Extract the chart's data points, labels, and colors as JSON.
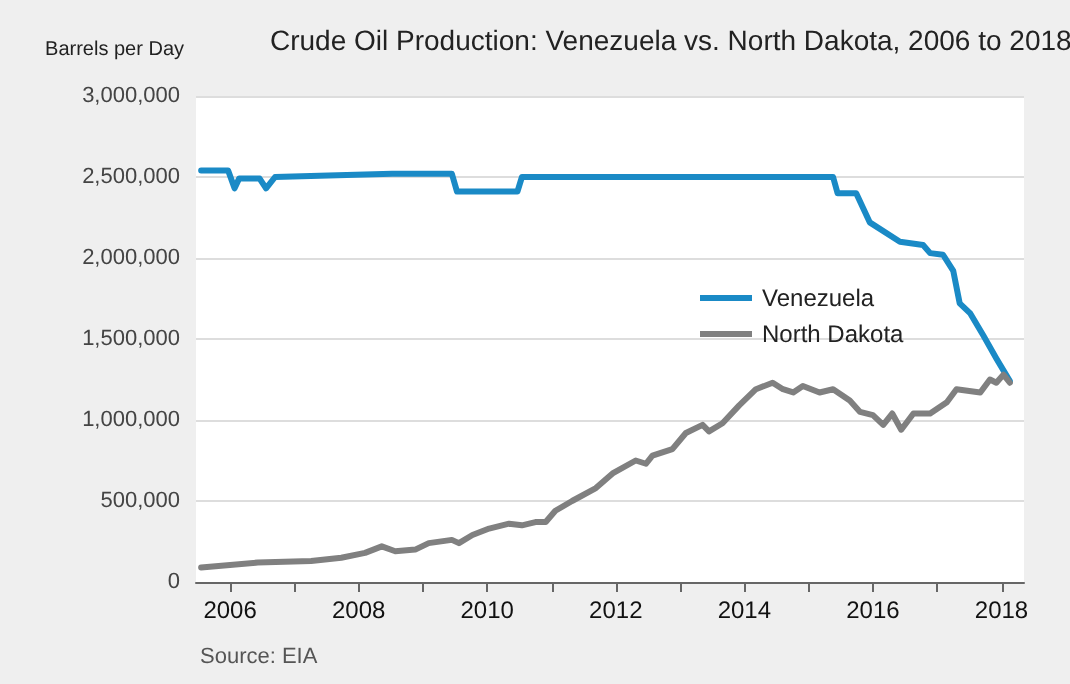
{
  "chart_data": {
    "type": "line",
    "title": "Crude Oil Production: Venezuela vs. North Dakota, 2006 to 2018",
    "ylabel": "Barrels per Day",
    "annotations": [
      "Source: EIA"
    ],
    "xlim": [
      2005.47,
      2018.35
    ],
    "xticks": [
      2006,
      {
        "value": 2007,
        "label": null
      },
      2008,
      {
        "value": 2009,
        "label": null
      },
      2010,
      {
        "value": 2011,
        "label": null
      },
      2012,
      {
        "value": 2013,
        "label": null
      },
      2014,
      {
        "value": 2015,
        "label": null
      },
      2016,
      {
        "value": 2017,
        "label": null
      },
      2018
    ],
    "ylim": [
      0,
      3000000
    ],
    "yticks": [
      0,
      {
        "value": 500000,
        "label": "500,000"
      },
      {
        "value": 1000000,
        "label": "1,000,000"
      },
      {
        "value": 1500000,
        "label": "1,500,000"
      },
      {
        "value": 2000000,
        "label": "2,000,000"
      },
      {
        "value": 2500000,
        "label": "2,500,000"
      },
      {
        "value": 3000000,
        "label": "3,000,000"
      }
    ],
    "grid": "y",
    "legend": "right",
    "marker": "none",
    "line_style": "solid",
    "series": [
      {
        "name": "Venezuela",
        "color": "#1a8ac6",
        "x": [
          2005.55,
          2005.97,
          2006.07,
          2006.14,
          2006.46,
          2006.56,
          2006.7,
          2007.53,
          2008.52,
          2009.45,
          2009.53,
          2010.47,
          2010.54,
          2015.38,
          2015.45,
          2015.74,
          2015.95,
          2016.42,
          2016.78,
          2016.89,
          2017.09,
          2017.25,
          2017.35,
          2017.51,
          2017.72,
          2017.92,
          2018.13
        ],
        "values": [
          2540000,
          2540000,
          2430000,
          2490000,
          2490000,
          2430000,
          2500000,
          2510000,
          2520000,
          2520000,
          2410000,
          2410000,
          2500000,
          2500000,
          2400000,
          2400000,
          2220000,
          2100000,
          2080000,
          2030000,
          2020000,
          1920000,
          1720000,
          1660000,
          1520000,
          1380000,
          1240000
        ]
      },
      {
        "name": "North Dakota",
        "color": "#808080",
        "x": [
          2005.55,
          2006.43,
          2007.26,
          2007.73,
          2008.1,
          2008.36,
          2008.57,
          2008.88,
          2009.09,
          2009.45,
          2009.56,
          2009.77,
          2010.03,
          2010.34,
          2010.54,
          2010.75,
          2010.91,
          2011.06,
          2011.32,
          2011.69,
          2011.95,
          2012.31,
          2012.47,
          2012.57,
          2012.88,
          2013.09,
          2013.35,
          2013.45,
          2013.66,
          2013.92,
          2014.18,
          2014.44,
          2014.6,
          2014.76,
          2014.91,
          2015.17,
          2015.38,
          2015.64,
          2015.8,
          2016.0,
          2016.16,
          2016.3,
          2016.44,
          2016.63,
          2016.89,
          2017.15,
          2017.3,
          2017.67,
          2017.82,
          2017.92,
          2018.03,
          2018.13
        ],
        "values": [
          90000,
          120000,
          130000,
          150000,
          180000,
          220000,
          190000,
          200000,
          240000,
          260000,
          240000,
          290000,
          330000,
          360000,
          350000,
          370000,
          370000,
          440000,
          500000,
          580000,
          670000,
          750000,
          730000,
          780000,
          820000,
          920000,
          970000,
          930000,
          980000,
          1090000,
          1190000,
          1230000,
          1190000,
          1170000,
          1210000,
          1170000,
          1190000,
          1120000,
          1050000,
          1030000,
          970000,
          1040000,
          940000,
          1040000,
          1040000,
          1110000,
          1190000,
          1170000,
          1250000,
          1230000,
          1280000,
          1230000
        ]
      }
    ]
  }
}
